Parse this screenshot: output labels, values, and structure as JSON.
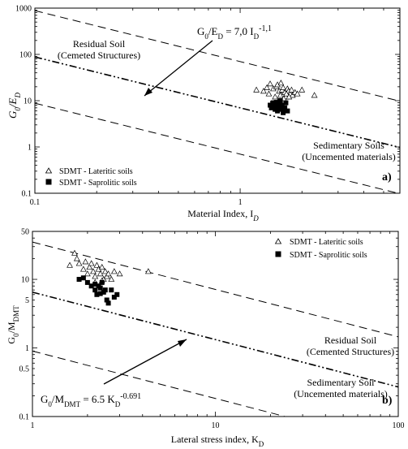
{
  "chart_data": [
    {
      "type": "scatter",
      "panel_label": "a)",
      "xlabel": "Material Index, I",
      "xlabel_sub": "D",
      "ylabel": "G",
      "ylabel_sub": "0",
      "ylabel_mid": "/E",
      "ylabel_sub2": "D",
      "x_scale": "log",
      "y_scale": "log",
      "xlim": [
        0.1,
        6
      ],
      "ylim": [
        0.1,
        1000
      ],
      "x_ticks": [
        "0.1",
        "1"
      ],
      "y_ticks": [
        "0.1",
        "1",
        "10",
        "100",
        "1000"
      ],
      "legend_placement": "bottom-left",
      "legend": [
        {
          "marker": "triangle-open",
          "label": "SDMT - Lateritic soils"
        },
        {
          "marker": "square-filled",
          "label": "SDMT - Saprolitic soils"
        }
      ],
      "series": [
        {
          "name": "SDMT - Lateritic soils",
          "marker": "triangle-open",
          "points": [
            [
              1.2,
              17
            ],
            [
              1.3,
              16
            ],
            [
              1.35,
              19
            ],
            [
              1.4,
              23
            ],
            [
              1.38,
              14
            ],
            [
              1.45,
              18
            ],
            [
              1.5,
              20
            ],
            [
              1.52,
              22
            ],
            [
              1.55,
              16
            ],
            [
              1.57,
              13
            ],
            [
              1.6,
              17
            ],
            [
              1.62,
              19
            ],
            [
              1.65,
              15
            ],
            [
              1.67,
              12
            ],
            [
              1.7,
              18
            ],
            [
              1.72,
              16
            ],
            [
              1.75,
              14
            ],
            [
              1.78,
              17
            ],
            [
              1.8,
              13
            ],
            [
              1.85,
              15
            ],
            [
              1.9,
              14
            ],
            [
              2.0,
              17
            ],
            [
              1.48,
              12
            ],
            [
              1.58,
              24
            ],
            [
              1.63,
              11
            ],
            [
              1.68,
              14
            ],
            [
              1.73,
              12
            ],
            [
              2.3,
              13
            ]
          ]
        },
        {
          "name": "SDMT - Saprolitic soils",
          "marker": "square-filled",
          "points": [
            [
              1.4,
              8
            ],
            [
              1.42,
              7
            ],
            [
              1.45,
              9
            ],
            [
              1.47,
              8
            ],
            [
              1.5,
              7.5
            ],
            [
              1.52,
              6
            ],
            [
              1.53,
              8.5
            ],
            [
              1.55,
              7
            ],
            [
              1.57,
              10
            ],
            [
              1.58,
              6.5
            ],
            [
              1.6,
              8
            ],
            [
              1.62,
              5.5
            ],
            [
              1.65,
              7
            ],
            [
              1.67,
              9
            ],
            [
              1.7,
              6
            ],
            [
              1.48,
              6.5
            ],
            [
              1.44,
              8.8
            ],
            [
              1.56,
              9.5
            ],
            [
              1.61,
              6.8
            ],
            [
              1.5,
              9.2
            ]
          ]
        }
      ],
      "lines": [
        {
          "style": "dash-dot",
          "coef": 7.0,
          "exp": -1.1
        },
        {
          "style": "dashed",
          "coef": 70,
          "exp": -1.1
        },
        {
          "style": "dashed",
          "coef": 0.7,
          "exp": -1.1
        }
      ],
      "annotations": {
        "equation_lhs": "G",
        "equation_lhs_sub": "0",
        "equation_mid": "/E",
        "equation_mid_sub": "D",
        "equation_rhs": " = 7,0 I",
        "equation_rhs_sub": "D",
        "equation_exp": "-1,1",
        "residual_line1": "Residual Soil",
        "residual_line2": "(Cemeted Structures)",
        "sedimentary_line1": "Sedimentary Soils",
        "sedimentary_line2": "(Uncemented materials)"
      }
    },
    {
      "type": "scatter",
      "panel_label": "b)",
      "xlabel": "Lateral stress index, K",
      "xlabel_sub": "D",
      "ylabel": "G",
      "ylabel_sub": "0",
      "ylabel_mid": "/M",
      "ylabel_sub2": "DMT",
      "x_scale": "log",
      "y_scale": "log",
      "xlim": [
        1,
        100
      ],
      "ylim": [
        0.1,
        50
      ],
      "x_ticks": [
        "1",
        "10",
        "100"
      ],
      "y_ticks": [
        "0.1",
        "0.5",
        "1",
        "5",
        "10",
        "50"
      ],
      "legend_placement": "top-right",
      "legend": [
        {
          "marker": "triangle-open",
          "label": "SDMT - Lateritic soils"
        },
        {
          "marker": "square-filled",
          "label": "SDMT - Saprolitic soils"
        }
      ],
      "series": [
        {
          "name": "SDMT - Lateritic soils",
          "marker": "triangle-open",
          "points": [
            [
              1.6,
              16
            ],
            [
              1.7,
              24
            ],
            [
              1.75,
              20
            ],
            [
              1.8,
              17
            ],
            [
              1.9,
              14
            ],
            [
              1.95,
              18
            ],
            [
              2.0,
              12
            ],
            [
              2.05,
              15
            ],
            [
              2.1,
              17
            ],
            [
              2.15,
              13
            ],
            [
              2.2,
              11
            ],
            [
              2.25,
              16
            ],
            [
              2.3,
              14
            ],
            [
              2.35,
              12
            ],
            [
              2.4,
              15
            ],
            [
              2.45,
              10
            ],
            [
              2.5,
              13
            ],
            [
              2.55,
              11
            ],
            [
              2.6,
              12
            ],
            [
              2.7,
              10
            ],
            [
              2.8,
              13
            ],
            [
              3.0,
              12
            ],
            [
              2.2,
              9
            ],
            [
              2.4,
              9.5
            ],
            [
              4.3,
              13
            ]
          ]
        },
        {
          "name": "SDMT - Saprolitic soils",
          "marker": "square-filled",
          "points": [
            [
              1.8,
              10
            ],
            [
              2.0,
              9
            ],
            [
              2.1,
              8
            ],
            [
              2.2,
              7
            ],
            [
              2.25,
              6
            ],
            [
              2.3,
              8
            ],
            [
              2.35,
              7.5
            ],
            [
              2.4,
              9
            ],
            [
              2.45,
              6.5
            ],
            [
              2.5,
              7
            ],
            [
              2.55,
              5
            ],
            [
              2.6,
              4.5
            ],
            [
              2.7,
              7
            ],
            [
              2.8,
              5.5
            ],
            [
              2.9,
              6
            ],
            [
              2.2,
              8.5
            ],
            [
              1.9,
              10.5
            ],
            [
              2.35,
              6.2
            ]
          ]
        }
      ],
      "lines": [
        {
          "style": "dash-dot",
          "coef": 6.5,
          "exp": -0.691
        },
        {
          "style": "dashed",
          "coef": 35,
          "exp": -0.691
        },
        {
          "style": "dashed",
          "coef": 0.9,
          "exp": -0.691
        }
      ],
      "annotations": {
        "equation_lhs": "G",
        "equation_lhs_sub": "0",
        "equation_mid": "/M",
        "equation_mid_sub": "DMT",
        "equation_rhs": " = 6.5 K",
        "equation_rhs_sub": "D",
        "equation_exp": "-0.691",
        "residual_line1": "Residual Soil",
        "residual_line2": "(Cemented Structures)",
        "sedimentary_line1": "Sedimentary Soil",
        "sedimentary_line2": "(Uncemented materials)"
      }
    }
  ]
}
